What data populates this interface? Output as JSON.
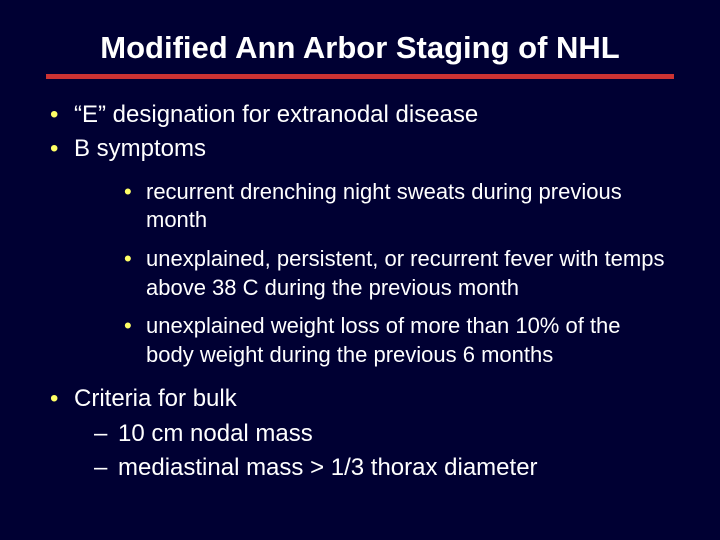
{
  "slide": {
    "title": "Modified Ann Arbor Staging of NHL",
    "bullets": {
      "b1": "“E” designation for extranodal disease",
      "b2": "B symptoms",
      "b2_sub": {
        "s1": "recurrent drenching night sweats during previous month",
        "s2": "unexplained, persistent, or recurrent fever with temps above 38 C during the previous month",
        "s3": "unexplained weight loss of more than 10% of the body weight during the previous 6 months"
      },
      "b3": "Criteria for bulk",
      "b3_sub": {
        "d1": "10 cm nodal mass",
        "d2": "mediastinal mass > 1/3 thorax diameter"
      }
    }
  },
  "colors": {
    "background": "#000033",
    "text": "#ffffff",
    "bullet": "#ffff66",
    "rule": "#cc3333"
  }
}
